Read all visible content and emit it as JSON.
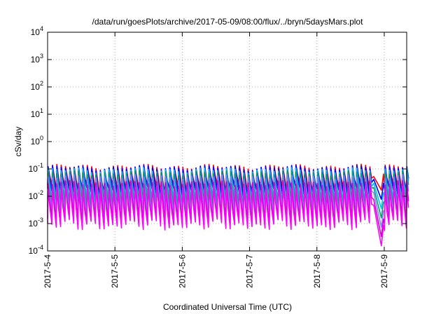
{
  "chart_data": {
    "type": "line",
    "title": "/data/run/goesPlots/archive/2017-05-09/08:00/flux/../bryn/5daysMars.plot",
    "xlabel": "Coordinated Universal Time (UTC)",
    "ylabel": "cSv/day",
    "yscale": "log",
    "ylim": [
      0.0001,
      10000
    ],
    "xlim": [
      "2017-05-04T00:00",
      "2017-05-09T08:00"
    ],
    "grid": true,
    "legend": "none",
    "x_ticks": [
      "2017-5-4",
      "2017-5-5",
      "2017-5-6",
      "2017-5-7",
      "2017-5-8",
      "2017-5-9"
    ],
    "y_ticks": [
      {
        "value": 0.0001,
        "base": "10",
        "exp": "-4"
      },
      {
        "value": 0.001,
        "base": "10",
        "exp": "-3"
      },
      {
        "value": 0.01,
        "base": "10",
        "exp": "-2"
      },
      {
        "value": 0.1,
        "base": "10",
        "exp": "-1"
      },
      {
        "value": 1,
        "base": "10",
        "exp": "0"
      },
      {
        "value": 10,
        "base": "10",
        "exp": "1"
      },
      {
        "value": 100,
        "base": "10",
        "exp": "2"
      },
      {
        "value": 1000,
        "base": "10",
        "exp": "3"
      },
      {
        "value": 10000,
        "base": "10",
        "exp": "4"
      }
    ],
    "pattern": {
      "description": "periodic sawtooth of sharp spikes (~1.5 h period); each series rises abruptly then decays",
      "period_hours": 1.55
    },
    "series": [
      {
        "color": "#ff0000",
        "peak": 0.12,
        "trough": 0.02
      },
      {
        "color": "#0000ff",
        "peak": 0.11,
        "trough": 0.015
      },
      {
        "color": "#00bfff",
        "peak": 0.09,
        "trough": 0.008
      },
      {
        "color": "#00a060",
        "peak": 0.07,
        "trough": 0.005
      },
      {
        "color": "#8080ff",
        "peak": 0.05,
        "trough": 0.003
      },
      {
        "color": "#cc00cc",
        "peak": 0.03,
        "trough": 0.0015
      },
      {
        "color": "#ff00ff",
        "peak": 0.02,
        "trough": 0.0009
      }
    ],
    "dip_event": {
      "start": "2017-05-08T19:30",
      "end": "2017-05-08T23:45",
      "min_value": 0.00015
    }
  }
}
